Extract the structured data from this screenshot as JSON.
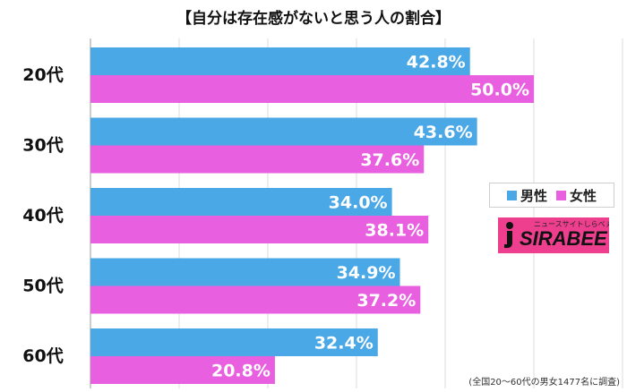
{
  "chart_data": {
    "type": "bar",
    "orientation": "horizontal",
    "title": "【自分は存在感がないと思う人の割合】",
    "categories": [
      "20代",
      "30代",
      "40代",
      "50代",
      "60代"
    ],
    "series": [
      {
        "name": "男性",
        "color": "#4aa8e6",
        "values": [
          42.8,
          43.6,
          34.0,
          34.9,
          32.4
        ],
        "labels": [
          "42.8%",
          "43.6%",
          "34.0%",
          "34.9%",
          "32.4%"
        ]
      },
      {
        "name": "女性",
        "color": "#e85fe0",
        "values": [
          50.0,
          37.6,
          38.1,
          37.2,
          20.8
        ],
        "labels": [
          "50.0%",
          "37.6%",
          "38.1%",
          "37.2%",
          "20.8%"
        ]
      }
    ],
    "xlim": [
      0,
      100
    ],
    "grid": true,
    "legend_position": "right"
  },
  "logo": {
    "tagline": "ニュースサイトしらべぇ",
    "wordmark": "SIRABEE"
  },
  "footnote": "(全国20～60代の男女1477名に調査)"
}
